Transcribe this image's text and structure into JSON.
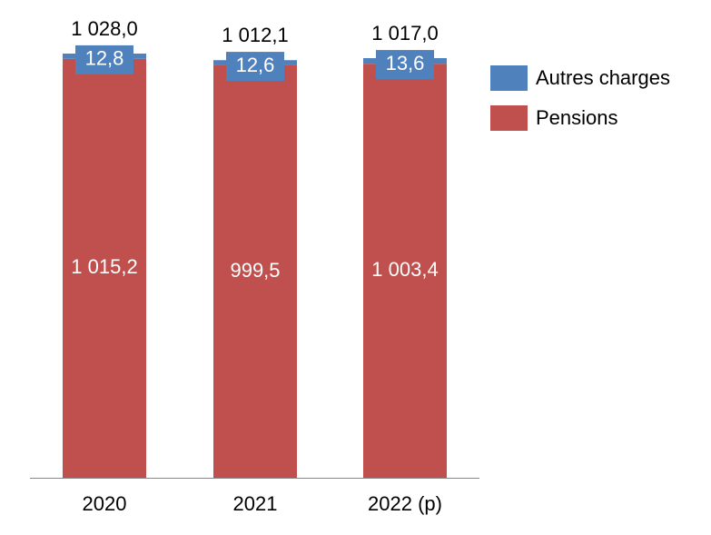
{
  "chart_data": {
    "type": "stacked-bar",
    "categories": [
      "2020",
      "2021",
      "2022 (p)"
    ],
    "series": [
      {
        "name": "Pensions",
        "color": "#c0504d",
        "values": [
          1015.2,
          999.5,
          1003.4
        ],
        "value_labels": [
          "1 015,2",
          "999,5",
          "1 003,4"
        ]
      },
      {
        "name": "Autres charges",
        "color": "#4f81bd",
        "values": [
          12.8,
          12.6,
          13.6
        ],
        "value_labels": [
          "12,8",
          "12,6",
          "13,6"
        ]
      }
    ],
    "totals": [
      1028.0,
      1012.1,
      1017.0
    ],
    "total_labels": [
      "1 028,0",
      "1 012,1",
      "1 017,0"
    ],
    "legend": "right"
  }
}
